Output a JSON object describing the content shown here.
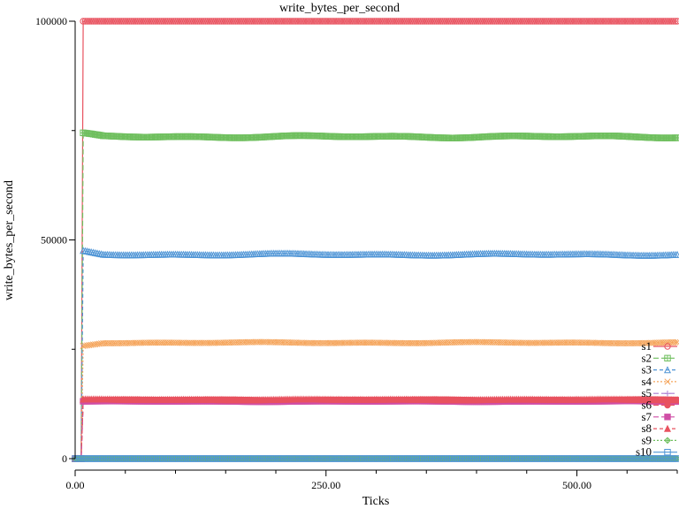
{
  "chart_data": {
    "type": "line",
    "title": "write_bytes_per_second",
    "xlabel": "Ticks",
    "ylabel": "write_bytes_per_second",
    "xlim": [
      0,
      600
    ],
    "ylim": [
      0,
      100000
    ],
    "x_ticks": [
      0,
      250,
      500
    ],
    "x_tick_labels": [
      "0.00",
      "250.00",
      "500.00"
    ],
    "y_ticks": [
      0,
      50000,
      100000
    ],
    "y_tick_labels": [
      "0",
      "50000",
      "100000"
    ],
    "grid": false,
    "legend_position": "right",
    "series": [
      {
        "name": "s1",
        "color": "#e8525f",
        "marker": "circle-open",
        "dash": "",
        "ramp_at": 8,
        "level": 100000,
        "wiggle": 0
      },
      {
        "name": "s2",
        "color": "#6fbf5e",
        "marker": "square-plus",
        "dash": "6,3",
        "ramp_at": 8,
        "level": 73600,
        "peak": 74200,
        "wiggle": 300
      },
      {
        "name": "s3",
        "color": "#4f95d6",
        "marker": "triangle-open",
        "dash": "4,3",
        "ramp_at": 8,
        "level": 46700,
        "peak": 47400,
        "wiggle": 250
      },
      {
        "name": "s4",
        "color": "#f5a55c",
        "marker": "cross",
        "dash": "2,2",
        "ramp_at": 8,
        "level": 26500,
        "peak": 25800,
        "wiggle": 150
      },
      {
        "name": "s5",
        "color": "#a97bd1",
        "marker": "plus",
        "dash": "6,3",
        "ramp_at": 8,
        "level": 13300,
        "wiggle": 60
      },
      {
        "name": "s6",
        "color": "#e8525f",
        "marker": "circle-filled",
        "dash": "6,3",
        "ramp_at": 8,
        "level": 13400,
        "wiggle": 120
      },
      {
        "name": "s7",
        "color": "#d04fa6",
        "marker": "square-filled",
        "dash": "6,3",
        "ramp_at": 8,
        "level": 13100,
        "wiggle": 80
      },
      {
        "name": "s8",
        "color": "#e8525f",
        "marker": "triangle-filled",
        "dash": "4,3",
        "ramp_at": 8,
        "level": 13500,
        "wiggle": 100
      },
      {
        "name": "s9",
        "color": "#6fbf5e",
        "marker": "diamond-plus",
        "dash": "2,2",
        "ramp_at": 8,
        "level": 0,
        "wiggle": 0
      },
      {
        "name": "s10",
        "color": "#4f95d6",
        "marker": "square-open",
        "dash": "",
        "ramp_at": 0,
        "level": 0,
        "wiggle": 0
      }
    ]
  }
}
